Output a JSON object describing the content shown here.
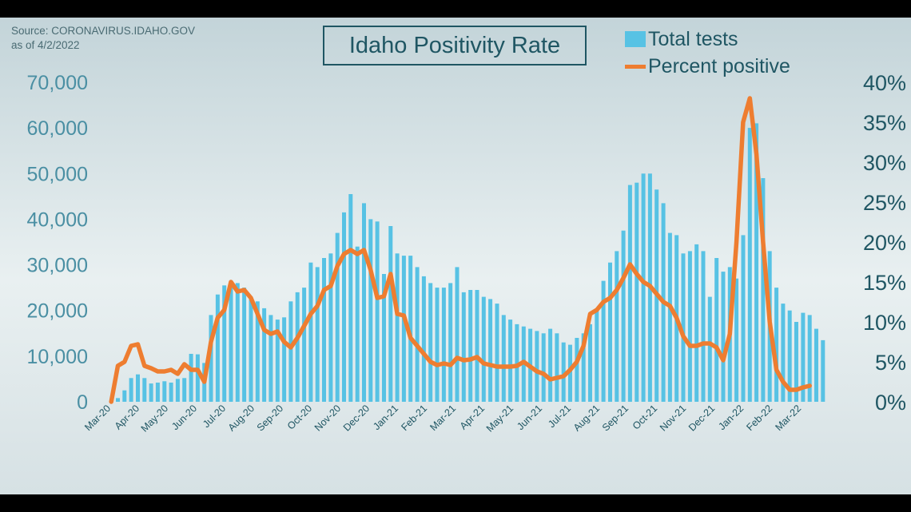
{
  "source": {
    "line1": "Source: CORONAVIRUS.IDAHO.GOV",
    "line2": "as of 4/2/2022"
  },
  "legend": {
    "bars": "Total tests",
    "line": "Percent positive"
  },
  "colors": {
    "bars": "#57c2e4",
    "line": "#ee7d30",
    "text": "#1f5663",
    "left_axis": "#4a8fa3"
  },
  "chart_data": {
    "type": "bar",
    "title": "Idaho Positivity Rate",
    "legend_position": "top-right",
    "grid": false,
    "x_tick_labels": [
      "Mar-20",
      "Apr-20",
      "May-20",
      "Jun-20",
      "Jul-20",
      "Aug-20",
      "Sep-20",
      "Oct-20",
      "Nov-20",
      "Dec-20",
      "Jan-21",
      "Feb-21",
      "Mar-21",
      "Apr-21",
      "May-21",
      "Jun-21",
      "Jul-21",
      "Aug-21",
      "Sep-21",
      "Oct-21",
      "Nov-21",
      "Dec-21",
      "Jan-22",
      "Feb-22",
      "Mar-22"
    ],
    "y_left": {
      "range": [
        0,
        70000
      ],
      "ticks": [
        "0",
        "10,000",
        "20,000",
        "30,000",
        "40,000",
        "50,000",
        "60,000",
        "70,000"
      ]
    },
    "y_right": {
      "range": [
        0,
        40
      ],
      "ticks": [
        "0%",
        "5%",
        "10%",
        "15%",
        "20%",
        "25%",
        "30%",
        "35%",
        "40%"
      ]
    },
    "series": [
      {
        "name": "Total tests",
        "type": "bar",
        "axis": "left",
        "values": [
          200,
          800,
          2500,
          5200,
          6000,
          5200,
          4000,
          4200,
          4500,
          4200,
          5000,
          5200,
          10500,
          10400,
          8500,
          19000,
          23500,
          25500,
          26500,
          26000,
          25000,
          23000,
          22000,
          20500,
          19000,
          18000,
          18500,
          22000,
          24000,
          25000,
          30500,
          29500,
          31500,
          32500,
          37000,
          41500,
          45500,
          34000,
          43500,
          40000,
          39500,
          28000,
          38500,
          32500,
          32000,
          32000,
          29500,
          27500,
          26000,
          25000,
          25000,
          26000,
          29500,
          24000,
          24500,
          24500,
          23000,
          22500,
          21500,
          19000,
          18000,
          17000,
          16500,
          16000,
          15500,
          15000,
          16000,
          15000,
          13000,
          12500,
          14000,
          15000,
          17000,
          20000,
          26500,
          30500,
          33000,
          37500,
          47500,
          48000,
          50000,
          50000,
          46500,
          43500,
          37000,
          36500,
          32500,
          33000,
          34500,
          33000,
          23000,
          31500,
          28500,
          29500,
          27000,
          36500,
          60000,
          61000,
          49000,
          33000,
          25000,
          21500,
          20000,
          17500,
          19500,
          19000,
          16000,
          13500
        ]
      },
      {
        "name": "Percent positive",
        "type": "line",
        "axis": "right",
        "values": [
          0,
          4.5,
          5,
          7,
          7.2,
          4.5,
          4.2,
          3.8,
          3.8,
          4,
          3.5,
          4.7,
          4,
          4,
          2.5,
          7.5,
          10.5,
          11.5,
          15,
          13.8,
          14,
          13,
          11,
          9,
          8.5,
          8.8,
          7.5,
          6.8,
          8,
          9.5,
          11,
          12,
          14,
          14.5,
          17,
          18.5,
          19,
          18.5,
          19,
          16.5,
          13,
          13.2,
          16,
          11,
          10.8,
          8,
          7,
          6,
          5,
          4.6,
          4.8,
          4.6,
          5.5,
          5.2,
          5.3,
          5.6,
          4.8,
          4.6,
          4.4,
          4.4,
          4.4,
          4.5,
          5,
          4.4,
          3.8,
          3.5,
          2.8,
          3,
          3.2,
          4,
          5,
          7,
          11,
          11.5,
          12.5,
          13,
          14,
          15.5,
          17.2,
          16,
          15,
          14.5,
          13.5,
          12.5,
          12,
          10.5,
          8.2,
          7,
          7,
          7.3,
          7.3,
          6.8,
          5.2,
          8.5,
          20,
          35,
          38,
          31,
          20,
          10,
          4,
          2.5,
          1.5,
          1.5,
          1.8,
          2
        ]
      }
    ]
  }
}
